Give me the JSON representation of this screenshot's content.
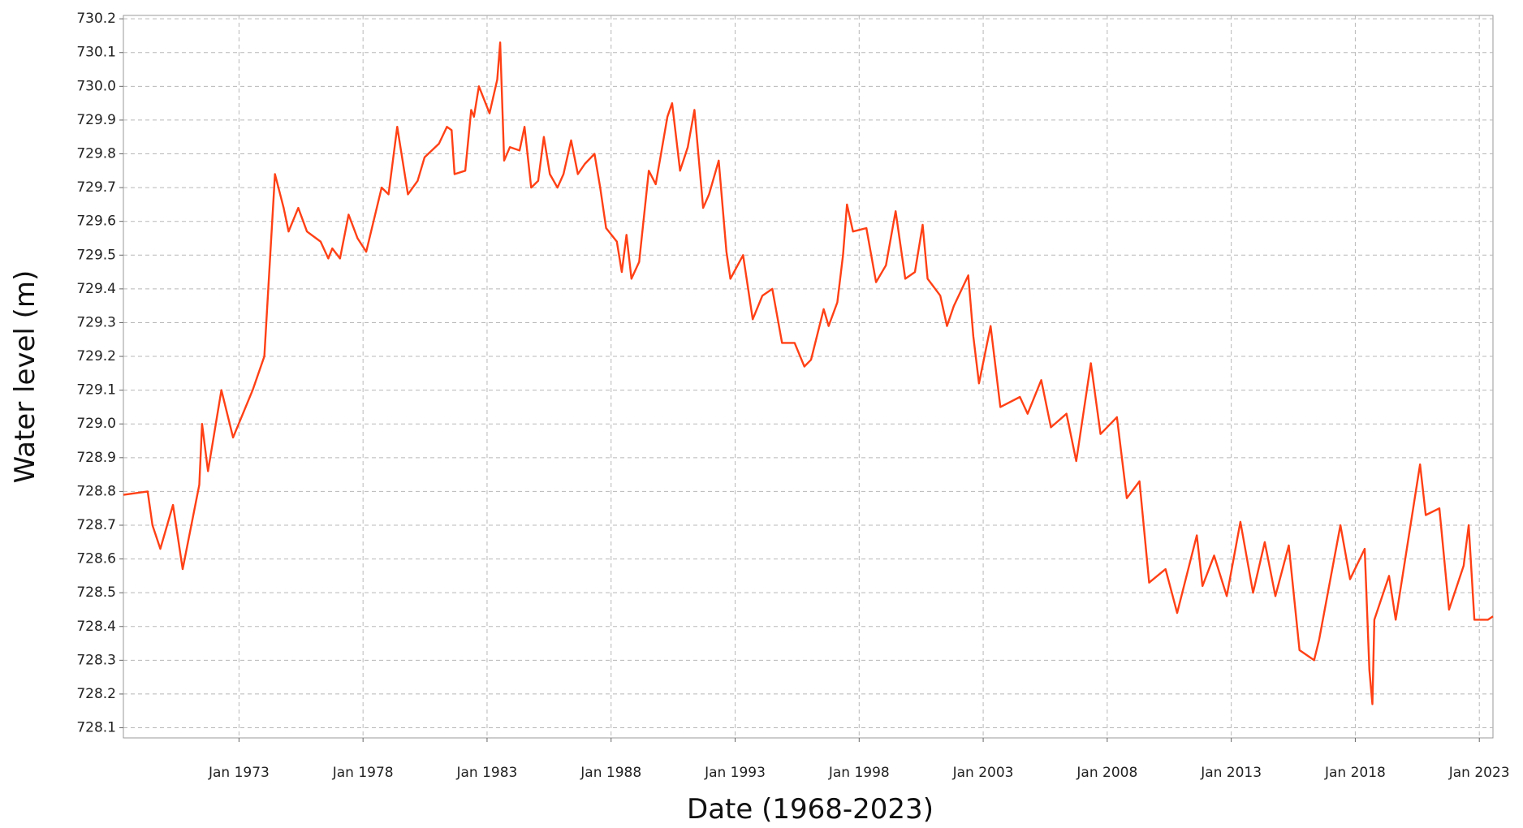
{
  "chart_data": {
    "type": "line",
    "xlabel": "Date (1968-2023)",
    "ylabel": "Water level (m)",
    "xlim": [
      1968.34,
      2023.55
    ],
    "ylim": [
      728.07,
      730.21
    ],
    "xticks": [
      {
        "value": 1973,
        "label": "Jan 1973"
      },
      {
        "value": 1978,
        "label": "Jan 1978"
      },
      {
        "value": 1983,
        "label": "Jan 1983"
      },
      {
        "value": 1988,
        "label": "Jan 1988"
      },
      {
        "value": 1993,
        "label": "Jan 1993"
      },
      {
        "value": 1998,
        "label": "Jan 1998"
      },
      {
        "value": 2003,
        "label": "Jan 2003"
      },
      {
        "value": 2008,
        "label": "Jan 2008"
      },
      {
        "value": 2013,
        "label": "Jan 2013"
      },
      {
        "value": 2018,
        "label": "Jan 2018"
      },
      {
        "value": 2023,
        "label": "Jan 2023"
      }
    ],
    "yticks": [
      728.1,
      728.2,
      728.3,
      728.4,
      728.5,
      728.6,
      728.7,
      728.8,
      728.9,
      {
        "value": 729,
        "label": "729.0"
      },
      729.1,
      729.2,
      729.3,
      729.4,
      729.5,
      729.6,
      729.7,
      729.8,
      729.9,
      {
        "value": 730,
        "label": "730.0"
      },
      730.1,
      730.2
    ],
    "grid": true,
    "x": [
      1968.34,
      1969.32,
      1969.51,
      1969.83,
      1970.34,
      1970.73,
      1971.4,
      1971.51,
      1971.75,
      1972.29,
      1972.76,
      1973.55,
      1974.02,
      1974.45,
      1974.8,
      1975.0,
      1975.39,
      1975.74,
      1976.29,
      1976.6,
      1976.76,
      1977.07,
      1977.42,
      1977.78,
      1978.13,
      1978.75,
      1979.03,
      1979.38,
      1979.81,
      1980.2,
      1980.48,
      1981.06,
      1981.38,
      1981.57,
      1981.69,
      1982.12,
      1982.36,
      1982.47,
      1982.67,
      1983.1,
      1983.41,
      1983.53,
      1983.69,
      1983.92,
      1984.31,
      1984.51,
      1984.78,
      1985.06,
      1985.29,
      1985.53,
      1985.84,
      1986.08,
      1986.39,
      1986.66,
      1986.94,
      1987.33,
      1987.56,
      1987.8,
      1988.23,
      1988.43,
      1988.62,
      1988.82,
      1989.13,
      1989.52,
      1989.8,
      1989.99,
      1990.27,
      1990.46,
      1990.78,
      1991.09,
      1991.36,
      1991.71,
      1991.95,
      1992.34,
      1992.65,
      1992.81,
      1993.32,
      1993.71,
      1994.1,
      1994.5,
      1994.89,
      1995.4,
      1995.79,
      1996.06,
      1996.57,
      1996.77,
      1997.12,
      1997.35,
      1997.51,
      1997.75,
      1998.29,
      1998.68,
      1999.08,
      1999.47,
      1999.86,
      2000.25,
      2000.56,
      2000.76,
      2001.27,
      2001.54,
      2001.82,
      2002.4,
      2002.6,
      2002.83,
      2003.3,
      2003.69,
      2004.48,
      2004.79,
      2005.34,
      2005.73,
      2006.36,
      2006.75,
      2007.34,
      2007.73,
      2008.39,
      2008.79,
      2009.3,
      2009.69,
      2010.35,
      2010.82,
      2011.61,
      2011.84,
      2012.31,
      2012.82,
      2013.37,
      2013.88,
      2014.35,
      2014.78,
      2015.32,
      2015.75,
      2016.34,
      2016.54,
      2017.4,
      2017.79,
      2018.38,
      2018.57,
      2018.69,
      2018.77,
      2019.36,
      2019.63,
      2020.61,
      2020.84,
      2021.39,
      2021.78,
      2022.37,
      2022.57,
      2022.8,
      2023.35,
      2023.55
    ],
    "series": [
      {
        "name": "Water level",
        "color": "#ff4015",
        "values": [
          728.79,
          728.8,
          728.7,
          728.63,
          728.76,
          728.57,
          728.82,
          729.0,
          728.86,
          729.1,
          728.96,
          729.1,
          729.2,
          729.74,
          729.64,
          729.57,
          729.64,
          729.57,
          729.54,
          729.49,
          729.52,
          729.49,
          729.62,
          729.55,
          729.51,
          729.7,
          729.68,
          729.88,
          729.68,
          729.72,
          729.79,
          729.83,
          729.88,
          729.87,
          729.74,
          729.75,
          729.93,
          729.91,
          730.0,
          729.92,
          730.02,
          730.13,
          729.78,
          729.82,
          729.81,
          729.88,
          729.7,
          729.72,
          729.85,
          729.74,
          729.7,
          729.74,
          729.84,
          729.74,
          729.77,
          729.8,
          729.7,
          729.58,
          729.54,
          729.45,
          729.56,
          729.43,
          729.48,
          729.75,
          729.71,
          729.79,
          729.91,
          729.95,
          729.75,
          729.82,
          729.93,
          729.64,
          729.68,
          729.78,
          729.51,
          729.43,
          729.5,
          729.31,
          729.38,
          729.4,
          729.24,
          729.24,
          729.17,
          729.19,
          729.34,
          729.29,
          729.36,
          729.5,
          729.65,
          729.57,
          729.58,
          729.42,
          729.47,
          729.63,
          729.43,
          729.45,
          729.59,
          729.43,
          729.38,
          729.29,
          729.35,
          729.44,
          729.26,
          729.12,
          729.29,
          729.05,
          729.08,
          729.03,
          729.13,
          728.99,
          729.03,
          728.89,
          729.18,
          728.97,
          729.02,
          728.78,
          728.83,
          728.53,
          728.57,
          728.44,
          728.67,
          728.52,
          728.61,
          728.49,
          728.71,
          728.5,
          728.65,
          728.49,
          728.64,
          728.33,
          728.3,
          728.36,
          728.7,
          728.54,
          728.63,
          728.27,
          728.17,
          728.42,
          728.55,
          728.42,
          728.88,
          728.73,
          728.75,
          728.45,
          728.58,
          728.7,
          728.42,
          728.42,
          728.43
        ]
      }
    ]
  }
}
